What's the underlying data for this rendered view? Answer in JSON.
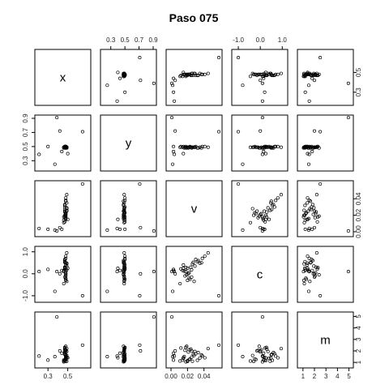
{
  "chart_data": {
    "type": "scatter",
    "title": "Paso 075",
    "variables": [
      "x",
      "y",
      "v",
      "c",
      "m"
    ],
    "ranges": {
      "x": [
        0.2,
        0.7
      ],
      "y": [
        0.2,
        0.9
      ],
      "v": [
        -0.002,
        0.058
      ],
      "c": [
        -1.15,
        1.1
      ],
      "m": [
        0.8,
        5.1
      ]
    },
    "ticks": {
      "x": {
        "values": [
          0.3,
          0.5
        ],
        "labels": [
          "0.3",
          "0.5"
        ]
      },
      "y": {
        "values": [
          0.3,
          0.5,
          0.7,
          0.9
        ],
        "labels": [
          "0.3",
          "0.5",
          "0.7",
          "0.9"
        ]
      },
      "v": {
        "values": [
          0.0,
          0.02,
          0.04
        ],
        "labels": [
          "0.00",
          "0.02",
          "0.04"
        ]
      },
      "c": {
        "values": [
          -1.0,
          0.0,
          1.0
        ],
        "labels": [
          "-1.0",
          "0.0",
          "1.0"
        ]
      },
      "m": {
        "values": [
          1,
          2,
          3,
          4,
          5
        ],
        "labels": [
          "1",
          "2",
          "3",
          "4",
          "5"
        ]
      }
    },
    "points": {
      "x": [
        0.46,
        0.47,
        0.48,
        0.48,
        0.49,
        0.49,
        0.47,
        0.48,
        0.48,
        0.47,
        0.47,
        0.48,
        0.49,
        0.46,
        0.48,
        0.48,
        0.47,
        0.49,
        0.48,
        0.47,
        0.48,
        0.47,
        0.49,
        0.48,
        0.47,
        0.49,
        0.48,
        0.47,
        0.48,
        0.46,
        0.21,
        0.65,
        0.44,
        0.42,
        0.37,
        0.39,
        0.3,
        0.5
      ],
      "y": [
        0.48,
        0.49,
        0.49,
        0.5,
        0.48,
        0.49,
        0.5,
        0.48,
        0.49,
        0.49,
        0.5,
        0.48,
        0.49,
        0.49,
        0.5,
        0.48,
        0.49,
        0.49,
        0.49,
        0.5,
        0.49,
        0.48,
        0.49,
        0.5,
        0.48,
        0.49,
        0.5,
        0.49,
        0.48,
        0.49,
        0.39,
        0.71,
        0.43,
        0.72,
        0.25,
        0.91,
        0.5,
        0.4
      ],
      "v": [
        0.018,
        0.02,
        0.022,
        0.015,
        0.025,
        0.028,
        0.03,
        0.021,
        0.017,
        0.024,
        0.012,
        0.019,
        0.026,
        0.014,
        0.023,
        0.016,
        0.027,
        0.029,
        0.022,
        0.018,
        0.02,
        0.032,
        0.035,
        0.038,
        0.033,
        0.045,
        0.041,
        0.025,
        0.037,
        0.011,
        0.004,
        0.058,
        0.003,
        0.005,
        0.002,
        0.001,
        0.003,
        0.015
      ],
      "c": [
        0.1,
        0.25,
        -0.2,
        0.4,
        0.18,
        -0.35,
        0.65,
        0.0,
        -0.1,
        0.3,
        0.22,
        -0.05,
        0.45,
        0.15,
        -0.25,
        0.12,
        0.52,
        0.35,
        0.05,
        0.28,
        -0.3,
        0.55,
        0.48,
        0.7,
        0.6,
        0.95,
        0.8,
        -0.15,
        0.5,
        -0.45,
        0.1,
        -1.0,
        0.15,
        0.0,
        -0.8,
        0.1,
        0.2,
        0.25
      ],
      "m": [
        1.05,
        1.15,
        1.25,
        1.35,
        1.45,
        1.6,
        1.75,
        1.9,
        2.05,
        2.15,
        2.25,
        2.4,
        1.1,
        1.2,
        1.3,
        1.5,
        1.7,
        1.95,
        2.1,
        2.3,
        1.08,
        1.18,
        1.38,
        1.55,
        1.85,
        2.2,
        1.4,
        2.0,
        1.65,
        1.12,
        1.55,
        2.5,
        1.8,
        2.0,
        1.5,
        4.95,
        1.2,
        1.4
      ]
    }
  }
}
